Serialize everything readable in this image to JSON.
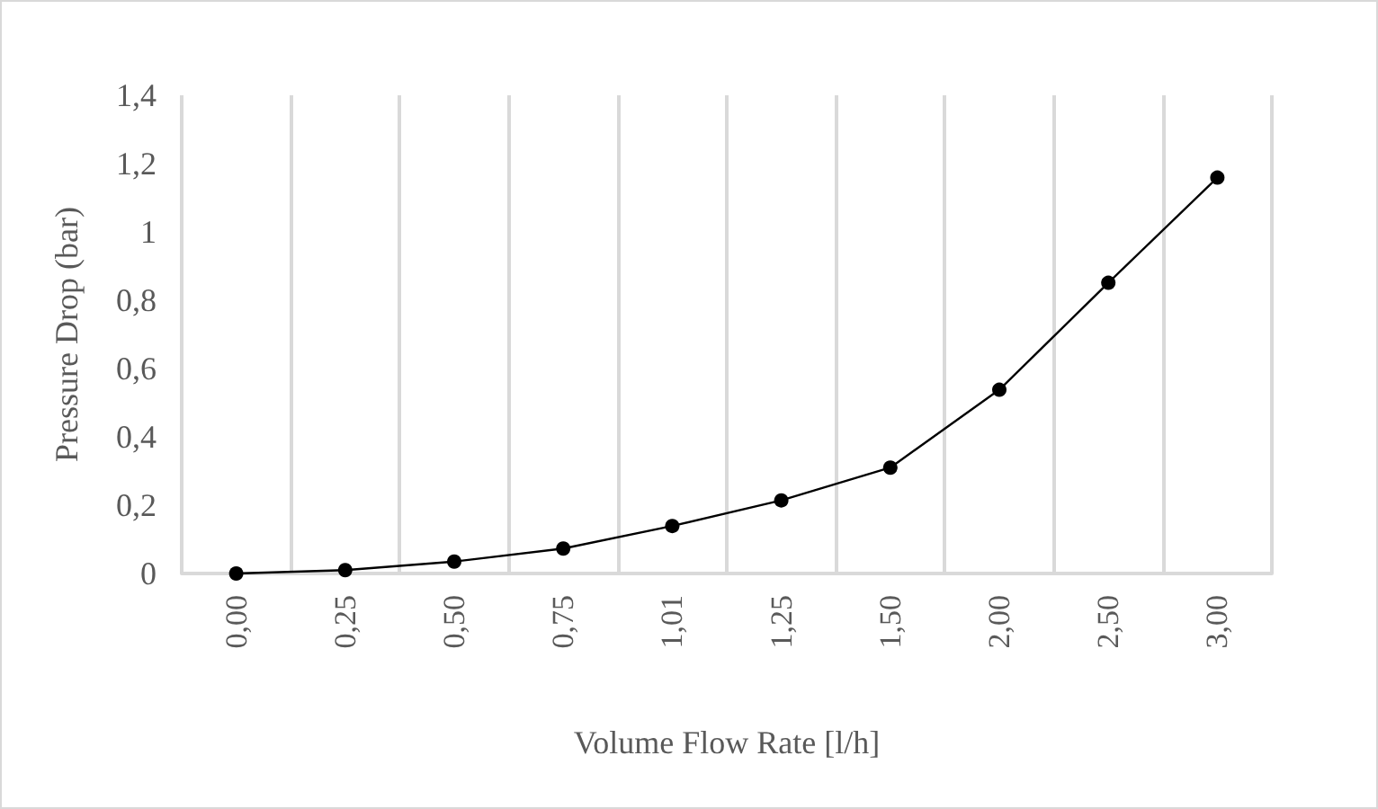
{
  "chart_data": {
    "type": "line",
    "xlabel": "Volume Flow Rate [l/h]",
    "ylabel": "Pressure Drop (bar)",
    "categories": [
      "0,00",
      "0,25",
      "0,50",
      "0,75",
      "1,01",
      "1,25",
      "1,50",
      "2,00",
      "2,50",
      "3,00"
    ],
    "series": [
      {
        "color": "#000000",
        "values": [
          0,
          0.01,
          0.035,
          0.073,
          0.139,
          0.214,
          0.31,
          0.538,
          0.851,
          1.159
        ]
      }
    ],
    "ylim": [
      0,
      1.4
    ],
    "yticks": [
      {
        "value": 0,
        "label": "0"
      },
      {
        "value": 0.2,
        "label": "0,2"
      },
      {
        "value": 0.4,
        "label": "0,4"
      },
      {
        "value": 0.6,
        "label": "0,6"
      },
      {
        "value": 0.8,
        "label": "0,8"
      },
      {
        "value": 1,
        "label": "1"
      },
      {
        "value": 1.2,
        "label": "1,2"
      },
      {
        "value": 1.4,
        "label": "1,4"
      }
    ],
    "grid": "x",
    "marker": "circle",
    "line_style": "solid"
  }
}
